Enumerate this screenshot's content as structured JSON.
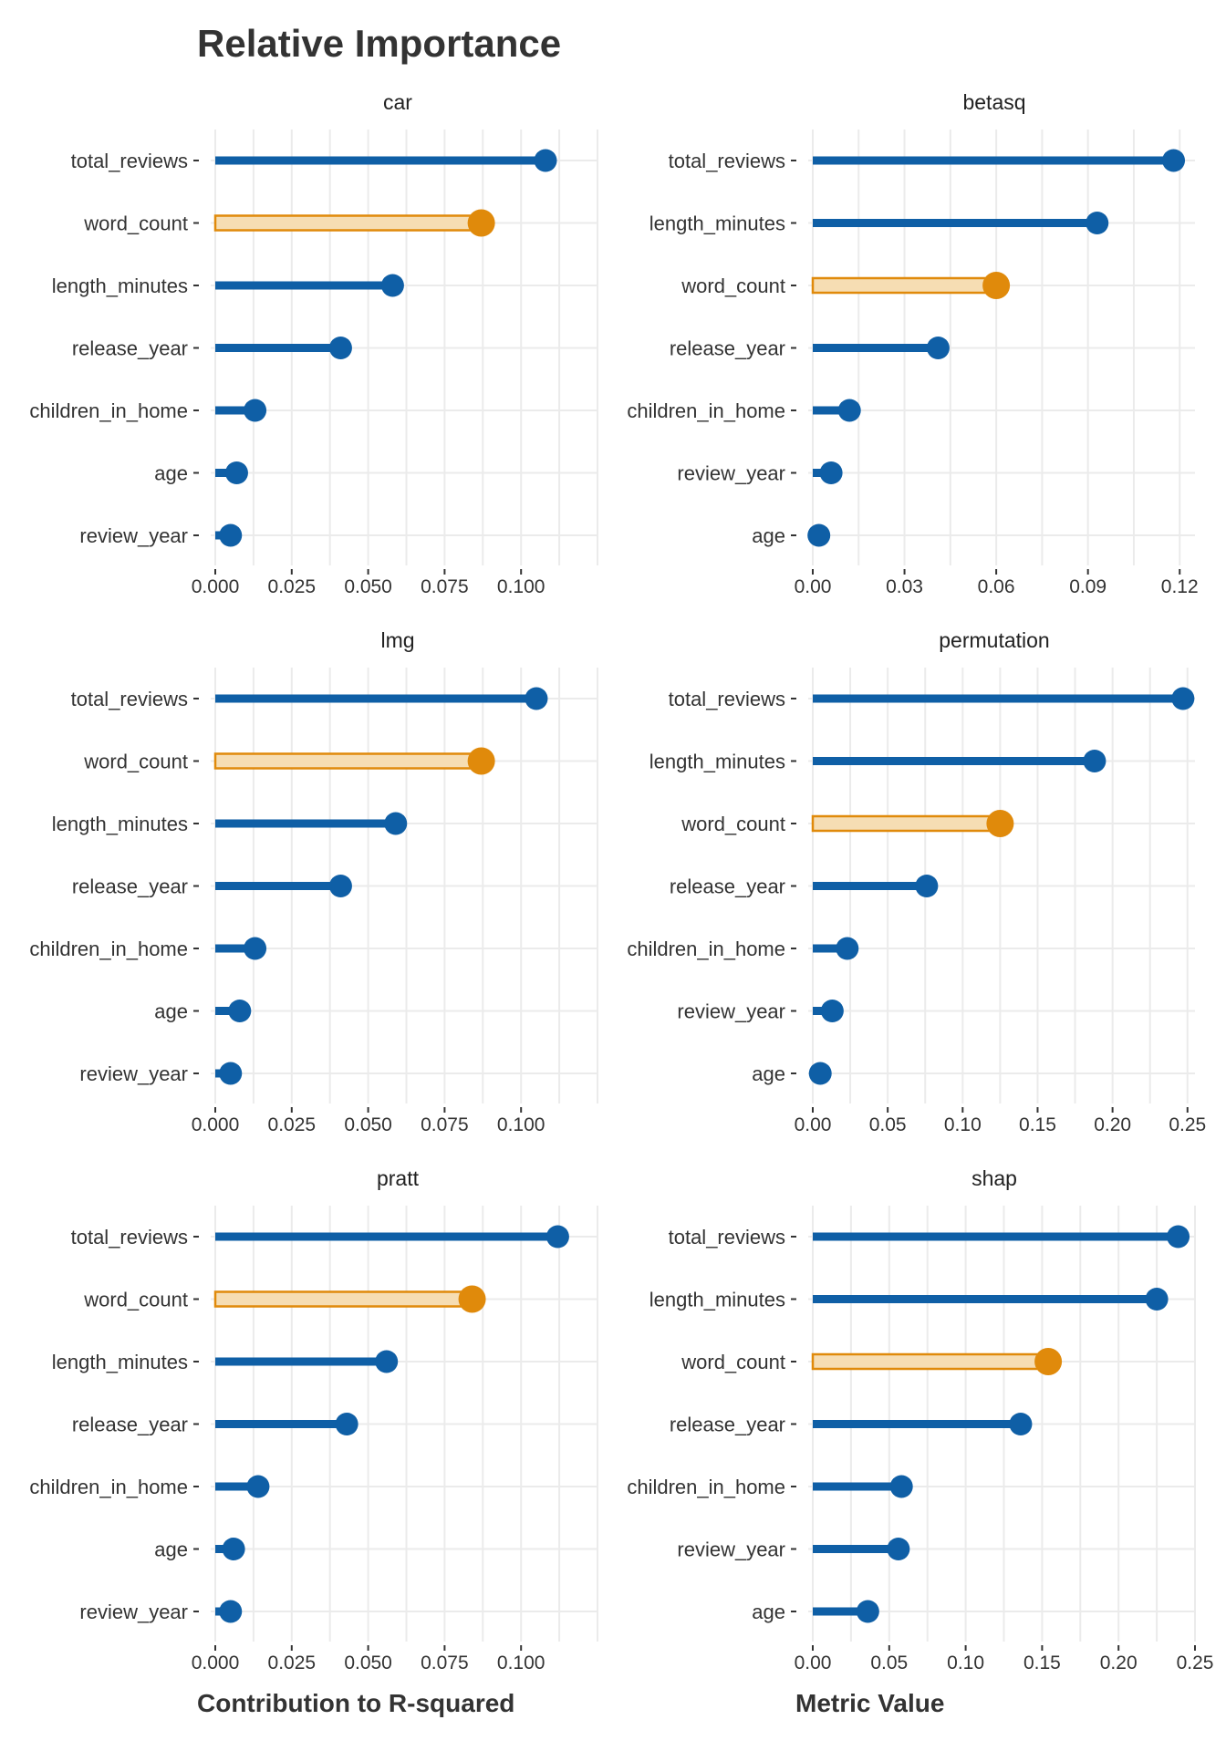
{
  "title": "Relative Importance",
  "colors": {
    "main": "#0F5FA6",
    "highlight": "#E08A0B",
    "highlight_fill": "#F6DDB3",
    "grid": "#EBEBEB"
  },
  "chart_data": [
    {
      "panel": "car",
      "type": "lollipop",
      "categories": [
        "total_reviews",
        "word_count",
        "length_minutes",
        "release_year",
        "children_in_home",
        "age",
        "review_year"
      ],
      "values": [
        0.108,
        0.087,
        0.058,
        0.041,
        0.013,
        0.007,
        0.005
      ],
      "highlight": "word_count",
      "xlim": [
        0,
        0.125
      ],
      "xticks": [
        0,
        0.025,
        0.05,
        0.075,
        0.1
      ],
      "xtick_labels": [
        "0.000",
        "0.025",
        "0.050",
        "0.075",
        "0.100"
      ]
    },
    {
      "panel": "betasq",
      "type": "lollipop",
      "categories": [
        "total_reviews",
        "length_minutes",
        "word_count",
        "release_year",
        "children_in_home",
        "review_year",
        "age"
      ],
      "values": [
        0.118,
        0.093,
        0.06,
        0.041,
        0.012,
        0.006,
        0.002
      ],
      "highlight": "word_count",
      "xlim": [
        0,
        0.125
      ],
      "xticks": [
        0,
        0.03,
        0.06,
        0.09,
        0.12
      ],
      "xtick_labels": [
        "0.00",
        "0.03",
        "0.06",
        "0.09",
        "0.12"
      ]
    },
    {
      "panel": "lmg",
      "type": "lollipop",
      "categories": [
        "total_reviews",
        "word_count",
        "length_minutes",
        "release_year",
        "children_in_home",
        "age",
        "review_year"
      ],
      "values": [
        0.105,
        0.087,
        0.059,
        0.041,
        0.013,
        0.008,
        0.005
      ],
      "highlight": "word_count",
      "xlim": [
        0,
        0.125
      ],
      "xticks": [
        0,
        0.025,
        0.05,
        0.075,
        0.1
      ],
      "xtick_labels": [
        "0.000",
        "0.025",
        "0.050",
        "0.075",
        "0.100"
      ]
    },
    {
      "panel": "permutation",
      "type": "lollipop",
      "categories": [
        "total_reviews",
        "length_minutes",
        "word_count",
        "release_year",
        "children_in_home",
        "review_year",
        "age"
      ],
      "values": [
        0.247,
        0.188,
        0.125,
        0.076,
        0.023,
        0.013,
        0.005
      ],
      "highlight": "word_count",
      "xlim": [
        0,
        0.255
      ],
      "xticks": [
        0,
        0.05,
        0.1,
        0.15,
        0.2,
        0.25
      ],
      "xtick_labels": [
        "0.00",
        "0.05",
        "0.10",
        "0.15",
        "0.20",
        "0.25"
      ]
    },
    {
      "panel": "pratt",
      "type": "lollipop",
      "categories": [
        "total_reviews",
        "word_count",
        "length_minutes",
        "release_year",
        "children_in_home",
        "age",
        "review_year"
      ],
      "values": [
        0.112,
        0.084,
        0.056,
        0.043,
        0.014,
        0.006,
        0.005
      ],
      "highlight": "word_count",
      "xlim": [
        0,
        0.125
      ],
      "xticks": [
        0,
        0.025,
        0.05,
        0.075,
        0.1
      ],
      "xtick_labels": [
        "0.000",
        "0.025",
        "0.050",
        "0.075",
        "0.100"
      ]
    },
    {
      "panel": "shap",
      "type": "lollipop",
      "categories": [
        "total_reviews",
        "length_minutes",
        "word_count",
        "release_year",
        "children_in_home",
        "review_year",
        "age"
      ],
      "values": [
        0.239,
        0.225,
        0.154,
        0.136,
        0.058,
        0.056,
        0.036
      ],
      "highlight": "word_count",
      "xlim": [
        0,
        0.25
      ],
      "xticks": [
        0,
        0.05,
        0.1,
        0.15,
        0.2,
        0.25
      ],
      "xtick_labels": [
        "0.00",
        "0.05",
        "0.10",
        "0.15",
        "0.20",
        "0.25"
      ]
    }
  ],
  "axis_labels": {
    "left": "Contribution to R-squared",
    "right": "Metric Value"
  }
}
